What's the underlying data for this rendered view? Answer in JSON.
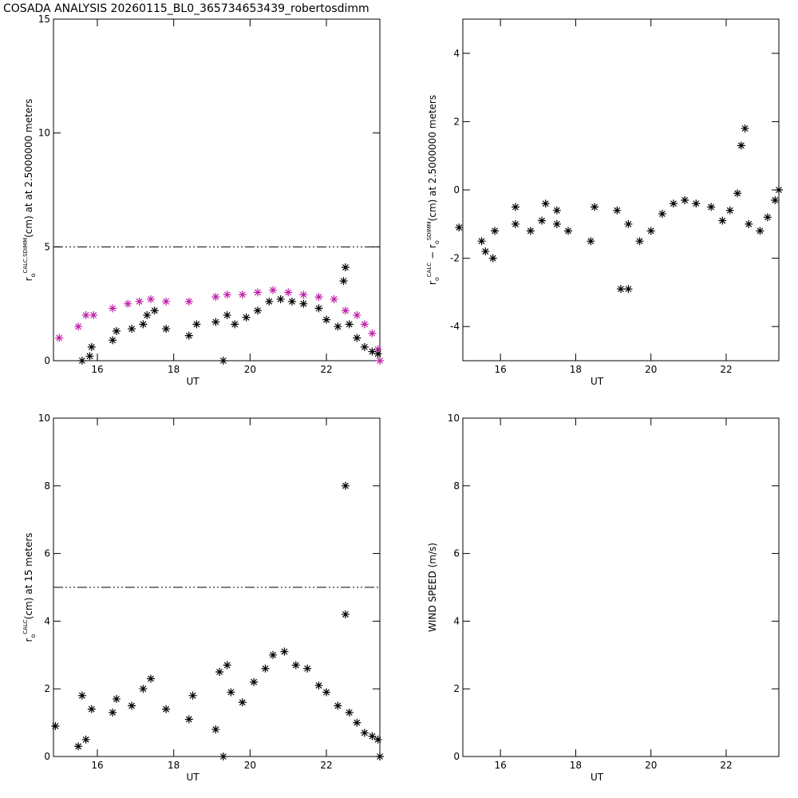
{
  "title": "COSADA ANALYSIS 20260115_BL0_365734653439_robertosdimm",
  "chart_data": [
    {
      "type": "scatter",
      "xlabel": "UT",
      "ylabel": [
        {
          "text": "r",
          "pos": "base"
        },
        {
          "text": "o",
          "pos": "sub"
        },
        {
          "text": "CALC,SDIMM",
          "pos": "sup"
        },
        {
          "text": "(cm)  at  at 2.5000000 meters",
          "pos": "base"
        }
      ],
      "xlim": [
        14.85,
        23.4
      ],
      "ylim": [
        0,
        15
      ],
      "xticks": [
        16,
        18,
        20,
        22
      ],
      "yticks": [
        0,
        5,
        10,
        15
      ],
      "hline": 5,
      "series": [
        {
          "color": "#c020a8",
          "x": [
            15.0,
            15.5,
            15.7,
            15.9,
            16.4,
            16.8,
            17.1,
            17.4,
            17.8,
            18.4,
            19.1,
            19.4,
            19.8,
            20.2,
            20.6,
            21.0,
            21.4,
            21.8,
            22.2,
            22.5,
            22.8,
            23.0,
            23.2,
            23.35,
            23.4
          ],
          "values": [
            1.0,
            1.5,
            2.0,
            2.0,
            2.3,
            2.5,
            2.6,
            2.7,
            2.6,
            2.6,
            2.8,
            2.9,
            2.9,
            3.0,
            3.1,
            3.0,
            2.9,
            2.8,
            2.7,
            2.2,
            2.0,
            1.6,
            1.2,
            0.5,
            0.0
          ]
        },
        {
          "color": "#000000",
          "x": [
            15.6,
            15.8,
            15.85,
            16.4,
            16.5,
            16.9,
            17.2,
            17.3,
            17.5,
            17.8,
            18.4,
            18.6,
            19.1,
            19.3,
            19.4,
            19.6,
            19.9,
            20.2,
            20.5,
            20.8,
            21.1,
            21.4,
            21.8,
            22.0,
            22.3,
            22.45,
            22.5,
            22.6,
            22.8,
            23.0,
            23.2,
            23.35
          ],
          "values": [
            0.0,
            0.2,
            0.6,
            0.9,
            1.3,
            1.4,
            1.6,
            2.0,
            2.2,
            1.4,
            1.1,
            1.6,
            1.7,
            0.0,
            2.0,
            1.6,
            1.9,
            2.2,
            2.6,
            2.7,
            2.6,
            2.5,
            2.3,
            1.8,
            1.5,
            3.5,
            4.1,
            1.6,
            1.0,
            0.6,
            0.4,
            0.3
          ]
        }
      ]
    },
    {
      "type": "scatter",
      "xlabel": "UT",
      "ylabel": [
        {
          "text": "r",
          "pos": "base"
        },
        {
          "text": "o",
          "pos": "sub"
        },
        {
          "text": "CALC",
          "pos": "sup"
        },
        {
          "text": " − r",
          "pos": "base"
        },
        {
          "text": "o",
          "pos": "sub"
        },
        {
          "text": "SDIMM",
          "pos": "sup"
        },
        {
          "text": "(cm) at 2.5000000 meters",
          "pos": "base"
        }
      ],
      "xlim": [
        15.0,
        23.4
      ],
      "ylim": [
        -5,
        5
      ],
      "xticks": [
        16,
        18,
        20,
        22
      ],
      "yticks": [
        -4,
        -2,
        0,
        2,
        4
      ],
      "series": [
        {
          "color": "#000000",
          "x": [
            14.9,
            15.5,
            15.6,
            15.8,
            15.85,
            16.4,
            16.4,
            16.8,
            17.1,
            17.2,
            17.5,
            17.5,
            17.8,
            18.4,
            18.5,
            19.1,
            19.2,
            19.4,
            19.4,
            19.7,
            20.0,
            20.3,
            20.6,
            20.9,
            21.2,
            21.6,
            21.9,
            22.1,
            22.3,
            22.4,
            22.5,
            22.6,
            22.9,
            23.1,
            23.3,
            23.4
          ],
          "values": [
            -1.1,
            -1.5,
            -1.8,
            -2.0,
            -1.2,
            -1.0,
            -0.5,
            -1.2,
            -0.9,
            -0.4,
            -0.6,
            -1.0,
            -1.2,
            -1.5,
            -0.5,
            -0.6,
            -2.9,
            -2.9,
            -1.0,
            -1.5,
            -1.2,
            -0.7,
            -0.4,
            -0.3,
            -0.4,
            -0.5,
            -0.9,
            -0.6,
            -0.1,
            1.3,
            1.8,
            -1.0,
            -1.2,
            -0.8,
            -0.3,
            0.0
          ]
        }
      ]
    },
    {
      "type": "scatter",
      "xlabel": "UT",
      "ylabel": [
        {
          "text": "r",
          "pos": "base"
        },
        {
          "text": "o",
          "pos": "sub"
        },
        {
          "text": "CALC",
          "pos": "sup"
        },
        {
          "text": "(cm) at 15 meters",
          "pos": "base"
        }
      ],
      "xlim": [
        14.85,
        23.4
      ],
      "ylim": [
        0,
        10
      ],
      "xticks": [
        16,
        18,
        20,
        22
      ],
      "yticks": [
        0,
        2,
        4,
        6,
        8,
        10
      ],
      "hline": 5,
      "series": [
        {
          "color": "#000000",
          "x": [
            14.9,
            15.5,
            15.6,
            15.7,
            15.85,
            16.4,
            16.5,
            16.9,
            17.2,
            17.4,
            17.8,
            18.4,
            18.5,
            19.1,
            19.2,
            19.3,
            19.4,
            19.5,
            19.8,
            20.1,
            20.4,
            20.6,
            20.9,
            21.2,
            21.5,
            21.8,
            22.0,
            22.3,
            22.5,
            22.5,
            22.6,
            22.8,
            23.0,
            23.2,
            23.35,
            23.4
          ],
          "values": [
            0.9,
            0.3,
            1.8,
            0.5,
            1.4,
            1.3,
            1.7,
            1.5,
            2.0,
            2.3,
            1.4,
            1.1,
            1.8,
            0.8,
            2.5,
            0.0,
            2.7,
            1.9,
            1.6,
            2.2,
            2.6,
            3.0,
            3.1,
            2.7,
            2.6,
            2.1,
            1.9,
            1.5,
            8.0,
            4.2,
            1.3,
            1.0,
            0.7,
            0.6,
            0.5,
            0.0
          ]
        }
      ]
    },
    {
      "type": "scatter",
      "xlabel": "UT",
      "ylabel": [
        {
          "text": "WIND SPEED (m/s)",
          "pos": "base"
        }
      ],
      "xlim": [
        15.0,
        23.4
      ],
      "ylim": [
        0,
        10
      ],
      "xticks": [
        16,
        18,
        20,
        22
      ],
      "yticks": [
        0,
        2,
        4,
        6,
        8,
        10
      ],
      "series": []
    }
  ]
}
